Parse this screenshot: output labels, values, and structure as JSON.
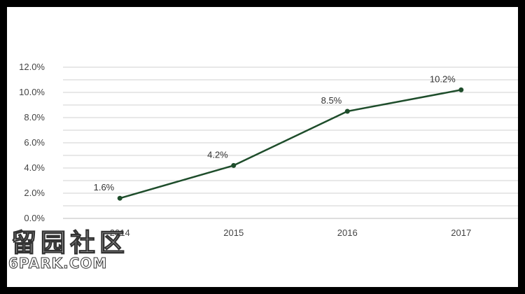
{
  "chart_data": {
    "type": "line",
    "title": "",
    "xlabel": "",
    "ylabel": "",
    "categories": [
      "2014",
      "2015",
      "2016",
      "2017"
    ],
    "series": [
      {
        "values": [
          1.6,
          4.2,
          8.5,
          10.2
        ],
        "labels": [
          "1.6%",
          "4.2%",
          "8.5%",
          "10.2%"
        ]
      }
    ],
    "ylim": [
      0,
      12
    ],
    "yticks": [
      "0.0%",
      "2.0%",
      "4.0%",
      "6.0%",
      "8.0%",
      "10.0%",
      "12.0%"
    ],
    "grid": true,
    "legend": "none",
    "colors": {
      "line": "#1e4d2b",
      "grid": "#d0d0d0",
      "frame": "#000000"
    }
  },
  "watermark": {
    "chinese": "留园社区",
    "site": "6PARK.COM"
  }
}
